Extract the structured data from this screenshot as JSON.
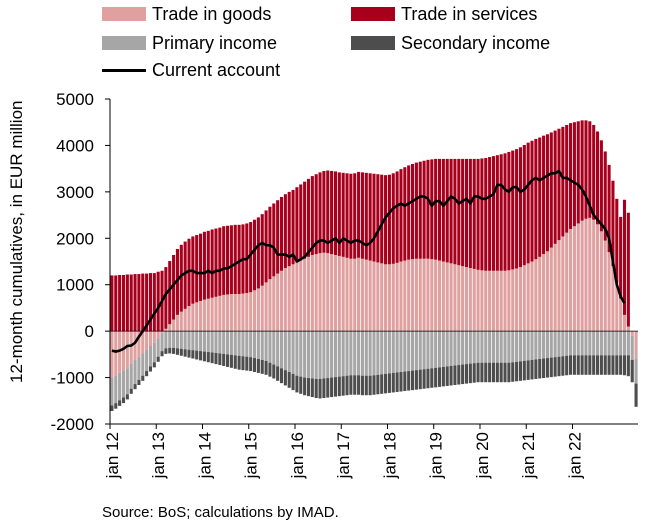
{
  "chart_data": {
    "type": "bar",
    "subtype": "stacked bars with line overlay",
    "x_tick_labels": [
      "jan 12",
      "jan 13",
      "jan 14",
      "jan 15",
      "jan 16",
      "jan 17",
      "jan 18",
      "jan 19",
      "jan 20",
      "jan 21",
      "jan 22"
    ],
    "ylabel": "12-month cumulatives, in EUR million",
    "ylim": [
      -2000,
      5000
    ],
    "yticks": [
      -2000,
      -1000,
      0,
      1000,
      2000,
      3000,
      4000,
      5000
    ],
    "grid": false,
    "legend_placement": "top",
    "months_per_series": "monthly, Jan 2012 to Mar 2022",
    "series": [
      {
        "name": "Trade in goods",
        "color": "#e0a0a0",
        "values": [
          -1000,
          -950,
          -900,
          -850,
          -800,
          -700,
          -620,
          -550,
          -480,
          -400,
          -320,
          -250,
          -150,
          -50,
          50,
          150,
          250,
          350,
          420,
          480,
          540,
          590,
          620,
          650,
          680,
          700,
          720,
          740,
          760,
          780,
          790,
          800,
          800,
          800,
          810,
          820,
          840,
          880,
          920,
          980,
          1050,
          1120,
          1180,
          1240,
          1300,
          1360,
          1400,
          1440,
          1480,
          1520,
          1560,
          1600,
          1640,
          1660,
          1680,
          1690,
          1680,
          1660,
          1640,
          1620,
          1600,
          1580,
          1560,
          1560,
          1580,
          1560,
          1540,
          1520,
          1500,
          1480,
          1460,
          1440,
          1440,
          1450,
          1470,
          1500,
          1520,
          1540,
          1550,
          1560,
          1560,
          1560,
          1560,
          1550,
          1540,
          1520,
          1500,
          1480,
          1460,
          1440,
          1420,
          1400,
          1380,
          1360,
          1340,
          1320,
          1310,
          1300,
          1300,
          1300,
          1300,
          1300,
          1300,
          1310,
          1330,
          1350,
          1380,
          1420,
          1460,
          1500,
          1550,
          1600,
          1660,
          1720,
          1800,
          1880,
          1960,
          2040,
          2120,
          2200,
          2260,
          2320,
          2380,
          2420,
          2440,
          2400,
          2300,
          2150,
          1950,
          1700,
          1400,
          1050,
          700,
          350,
          100,
          -100,
          -600
        ]
      },
      {
        "name": "Trade in services",
        "color": "#a8001c",
        "values": [
          1200,
          1200,
          1210,
          1210,
          1220,
          1220,
          1230,
          1230,
          1240,
          1240,
          1250,
          1250,
          1280,
          1300,
          1330,
          1360,
          1390,
          1420,
          1440,
          1450,
          1450,
          1450,
          1450,
          1450,
          1460,
          1460,
          1470,
          1470,
          1470,
          1480,
          1480,
          1480,
          1490,
          1490,
          1490,
          1500,
          1510,
          1520,
          1530,
          1540,
          1550,
          1560,
          1570,
          1580,
          1590,
          1590,
          1600,
          1600,
          1620,
          1640,
          1660,
          1680,
          1700,
          1720,
          1740,
          1760,
          1780,
          1790,
          1800,
          1800,
          1810,
          1820,
          1830,
          1840,
          1850,
          1860,
          1870,
          1880,
          1890,
          1900,
          1910,
          1920,
          1930,
          1950,
          1970,
          1990,
          2010,
          2030,
          2050,
          2070,
          2090,
          2110,
          2130,
          2150,
          2170,
          2190,
          2210,
          2230,
          2250,
          2270,
          2290,
          2310,
          2330,
          2350,
          2370,
          2390,
          2410,
          2430,
          2450,
          2470,
          2490,
          2510,
          2530,
          2550,
          2560,
          2570,
          2580,
          2590,
          2600,
          2600,
          2590,
          2570,
          2550,
          2520,
          2480,
          2440,
          2400,
          2360,
          2320,
          2280,
          2240,
          2200,
          2160,
          2120,
          2080,
          2040,
          2000,
          1960,
          1920,
          1880,
          1840,
          1800,
          1760,
          2480,
          2450
        ]
      },
      {
        "name": "Primary income",
        "color": "#a6a6a6",
        "values": [
          -600,
          -600,
          -590,
          -580,
          -560,
          -540,
          -520,
          -500,
          -480,
          -460,
          -440,
          -420,
          -400,
          -380,
          -370,
          -360,
          -360,
          -370,
          -380,
          -390,
          -400,
          -410,
          -420,
          -430,
          -440,
          -450,
          -460,
          -470,
          -480,
          -490,
          -500,
          -510,
          -520,
          -530,
          -540,
          -550,
          -560,
          -580,
          -600,
          -620,
          -640,
          -680,
          -720,
          -760,
          -800,
          -840,
          -880,
          -920,
          -960,
          -980,
          -1000,
          -1010,
          -1020,
          -1030,
          -1030,
          -1020,
          -1010,
          -1000,
          -990,
          -980,
          -970,
          -960,
          -950,
          -950,
          -950,
          -960,
          -960,
          -960,
          -950,
          -940,
          -930,
          -920,
          -910,
          -900,
          -890,
          -880,
          -870,
          -860,
          -850,
          -840,
          -830,
          -820,
          -810,
          -800,
          -790,
          -780,
          -770,
          -760,
          -750,
          -740,
          -730,
          -720,
          -710,
          -700,
          -690,
          -680,
          -680,
          -680,
          -680,
          -680,
          -680,
          -680,
          -680,
          -680,
          -670,
          -660,
          -650,
          -640,
          -630,
          -620,
          -610,
          -600,
          -590,
          -580,
          -570,
          -560,
          -550,
          -540,
          -530,
          -520,
          -520,
          -520,
          -520,
          -520,
          -520,
          -520,
          -520,
          -520,
          -520,
          -520,
          -520,
          -520,
          -520,
          -520,
          -520,
          -520,
          -530,
          -540
        ]
      },
      {
        "name": "Secondary income",
        "color": "#4d4d4d",
        "values": [
          -120,
          -120,
          -120,
          -120,
          -110,
          -110,
          -110,
          -110,
          -110,
          -110,
          -110,
          -110,
          -110,
          -110,
          -120,
          -120,
          -130,
          -140,
          -150,
          -160,
          -170,
          -180,
          -190,
          -200,
          -210,
          -220,
          -230,
          -240,
          -250,
          -260,
          -270,
          -280,
          -290,
          -300,
          -300,
          -300,
          -300,
          -300,
          -300,
          -300,
          -300,
          -300,
          -300,
          -310,
          -320,
          -330,
          -340,
          -350,
          -360,
          -370,
          -380,
          -390,
          -400,
          -410,
          -420,
          -420,
          -420,
          -420,
          -420,
          -420,
          -420,
          -420,
          -420,
          -420,
          -420,
          -420,
          -420,
          -420,
          -420,
          -420,
          -420,
          -420,
          -420,
          -420,
          -420,
          -420,
          -420,
          -420,
          -420,
          -420,
          -420,
          -420,
          -420,
          -420,
          -420,
          -420,
          -420,
          -420,
          -420,
          -420,
          -420,
          -420,
          -420,
          -420,
          -420,
          -420,
          -420,
          -420,
          -420,
          -420,
          -420,
          -420,
          -420,
          -420,
          -420,
          -420,
          -420,
          -420,
          -420,
          -420,
          -420,
          -420,
          -420,
          -420,
          -420,
          -420,
          -420,
          -420,
          -420,
          -420,
          -420,
          -420,
          -420,
          -420,
          -420,
          -420,
          -420,
          -420,
          -420,
          -420,
          -420,
          -420,
          -420,
          -430,
          -450,
          -480,
          -500,
          -520,
          -550
        ]
      },
      {
        "name": "Current account",
        "color": "#000000",
        "type": "line",
        "values": [
          -420,
          -440,
          -420,
          -380,
          -320,
          -310,
          -250,
          -120,
          0,
          120,
          250,
          380,
          500,
          650,
          800,
          900,
          1000,
          1100,
          1200,
          1250,
          1300,
          1300,
          1250,
          1250,
          1250,
          1300,
          1250,
          1300,
          1300,
          1350,
          1350,
          1400,
          1450,
          1500,
          1550,
          1550,
          1650,
          1750,
          1850,
          1900,
          1850,
          1850,
          1800,
          1650,
          1650,
          1650,
          1600,
          1650,
          1500,
          1550,
          1600,
          1700,
          1800,
          1900,
          1950,
          1950,
          1900,
          1950,
          2000,
          1900,
          2000,
          1950,
          1900,
          1950,
          1950,
          1900,
          1850,
          1900,
          2000,
          2150,
          2300,
          2450,
          2550,
          2650,
          2700,
          2750,
          2700,
          2750,
          2800,
          2850,
          2900,
          2900,
          2850,
          2700,
          2800,
          2800,
          2700,
          2800,
          2900,
          2850,
          2750,
          2800,
          2850,
          2750,
          2900,
          2900,
          2850,
          2850,
          2900,
          2950,
          3150,
          3150,
          3050,
          3000,
          3100,
          3100,
          3000,
          3050,
          3150,
          3250,
          3300,
          3250,
          3300,
          3350,
          3400,
          3400,
          3450,
          3300,
          3300,
          3250,
          3200,
          3150,
          3050,
          2900,
          2700,
          2500,
          2400,
          2300,
          2200,
          2000,
          1500,
          1000,
          750,
          600
        ]
      }
    ]
  },
  "source_text": "Source: BoS; calculations by IMAD."
}
